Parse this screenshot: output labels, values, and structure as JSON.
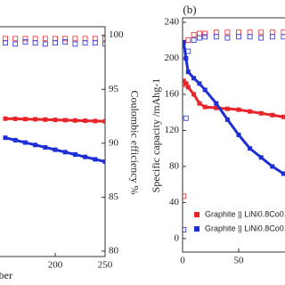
{
  "chart_data": [
    {
      "type": "line",
      "x_label": "ber",
      "y2_label": "Coulombic efficiency %",
      "x": [
        150,
        160,
        170,
        180,
        190,
        200,
        210,
        220,
        230,
        240,
        250
      ],
      "xlim": [
        0,
        250
      ],
      "xticks": [
        200,
        250
      ],
      "ylim": [
        0,
        240
      ],
      "y2lim": [
        79.5,
        100.8
      ],
      "y2ticks": [
        80,
        85,
        90,
        95,
        100
      ],
      "series": [
        {
          "color": "#e8252b",
          "marker": "filled",
          "values": [
            144,
            143.8,
            143.5,
            143.3,
            143,
            142.7,
            142.4,
            142.1,
            141.8,
            141.5,
            141.2
          ]
        },
        {
          "color": "#1f2fd6",
          "marker": "filled",
          "values": [
            124,
            121.5,
            119,
            116.5,
            114,
            111.5,
            109,
            106.5,
            104,
            101.5,
            99
          ]
        },
        {
          "color": "#e8252b",
          "marker": "hollow",
          "axis": "y2",
          "values": [
            99.7,
            99.7,
            99.7,
            99.7,
            99.7,
            99.7,
            99.7,
            99.7,
            99.7,
            99.7,
            99.7
          ]
        },
        {
          "color": "#1f2fd6",
          "marker": "hollow",
          "axis": "y2",
          "values": [
            99.3,
            99.2,
            99.4,
            99.3,
            99.2,
            99.3,
            99.4,
            99.2,
            99.3,
            99.3,
            99.2
          ]
        }
      ]
    },
    {
      "type": "line",
      "title": "(b)",
      "y_label": "Specific capacity /mAhg-1",
      "x": [
        1,
        3,
        5,
        10,
        15,
        20,
        30,
        40,
        50,
        60,
        70,
        80,
        90
      ],
      "xlim": [
        0,
        250
      ],
      "xticks": [
        0,
        50
      ],
      "ylim": [
        -15,
        245
      ],
      "yticks": [
        0,
        40,
        80,
        120,
        160,
        200,
        240
      ],
      "y2lim": [
        80,
        101
      ],
      "series": [
        {
          "name": "Graphite || LiNi0.8Co0.",
          "color": "#e8252b",
          "marker": "filled",
          "values": [
            175,
            172,
            168,
            160,
            150,
            146,
            145,
            144,
            143,
            141,
            139,
            137,
            135
          ]
        },
        {
          "name": "Graphite || LiNi0.8Co0.",
          "color": "#1f2fd6",
          "marker": "filled",
          "values": [
            218,
            200,
            185,
            178,
            172,
            165,
            150,
            132,
            115,
            100,
            90,
            80,
            72
          ]
        },
        {
          "color": "#e8252b",
          "marker": "hollow",
          "axis": "y2",
          "values": [
            85,
            95,
            99,
            99.5,
            99.6,
            99.6,
            99.7,
            99.7,
            99.7,
            99.7,
            99.7,
            99.7,
            99.7
          ]
        },
        {
          "color": "#1f2fd6",
          "marker": "hollow",
          "axis": "y2",
          "values": [
            82,
            92,
            98,
            99,
            99.2,
            99.3,
            99.3,
            99.2,
            99.3,
            99.3,
            99.2,
            99.3,
            99.3
          ]
        }
      ]
    }
  ]
}
